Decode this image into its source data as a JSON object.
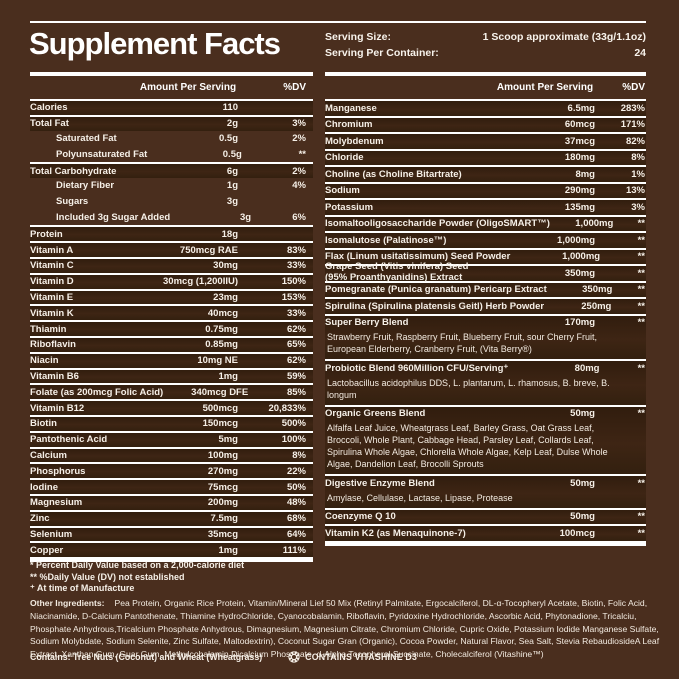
{
  "title": "Supplement Facts",
  "serving": {
    "size_label": "Serving Size:",
    "size_value": "1 Scoop approximate (33g/1.1oz)",
    "container_label": "Serving Per Container:",
    "container_value": "24"
  },
  "table_headers": {
    "amount": "Amount Per Serving",
    "dv": "%DV"
  },
  "left_rows": [
    {
      "name": "Calories",
      "amount": "110",
      "dv": ""
    },
    {
      "name": "Total Fat",
      "amount": "2g",
      "dv": "3%"
    },
    {
      "name": "Saturated Fat",
      "amount": "0.5g",
      "dv": "2%",
      "indent": true
    },
    {
      "name": "Polyunsaturated Fat",
      "amount": "0.5g",
      "dv": "**",
      "indent": true
    },
    {
      "name": "Total Carbohydrate",
      "amount": "6g",
      "dv": "2%"
    },
    {
      "name": "Dietary Fiber",
      "amount": "1g",
      "dv": "4%",
      "indent": true
    },
    {
      "name": "Sugars",
      "amount": "3g",
      "dv": "",
      "indent": true
    },
    {
      "name": "Included 3g Sugar Added",
      "amount": "3g",
      "dv": "6%",
      "indent": true
    },
    {
      "name": "Protein",
      "amount": "18g",
      "dv": ""
    },
    {
      "name": "Vitamin A",
      "amount": "750mcg RAE",
      "dv": "83%"
    },
    {
      "name": "Vitamin C",
      "amount": "30mg",
      "dv": "33%"
    },
    {
      "name": "Vitamin D",
      "amount": "30mcg (1,200IIU)",
      "dv": "150%"
    },
    {
      "name": "Vitamin E",
      "amount": "23mg",
      "dv": "153%"
    },
    {
      "name": "Vitamin K",
      "amount": "40mcg",
      "dv": "33%"
    },
    {
      "name": "Thiamin",
      "amount": "0.75mg",
      "dv": "62%"
    },
    {
      "name": "Riboflavin",
      "amount": "0.85mg",
      "dv": "65%"
    },
    {
      "name": "Niacin",
      "amount": "10mg NE",
      "dv": "62%"
    },
    {
      "name": "Vitamin B6",
      "amount": "1mg",
      "dv": "59%"
    },
    {
      "name": "Folate (as 200mcg Folic Acid)",
      "amount": "340mcg DFE",
      "dv": "85%"
    },
    {
      "name": "Vitamin B12",
      "amount": "500mcg",
      "dv": "20,833%"
    },
    {
      "name": "Biotin",
      "amount": "150mcg",
      "dv": "500%"
    },
    {
      "name": "Pantothenic Acid",
      "amount": "5mg",
      "dv": "100%"
    },
    {
      "name": "Calcium",
      "amount": "100mg",
      "dv": "8%"
    },
    {
      "name": "Phosphorus",
      "amount": "270mg",
      "dv": "22%"
    },
    {
      "name": "Iodine",
      "amount": "75mcg",
      "dv": "50%"
    },
    {
      "name": "Magnesium",
      "amount": "200mg",
      "dv": "48%"
    },
    {
      "name": "Zinc",
      "amount": "7.5mg",
      "dv": "68%"
    },
    {
      "name": "Selenium",
      "amount": "35mcg",
      "dv": "64%"
    },
    {
      "name": "Copper",
      "amount": "1mg",
      "dv": "111%"
    }
  ],
  "right_rows": [
    {
      "name": "Manganese",
      "amount": "6.5mg",
      "dv": "283%"
    },
    {
      "name": "Chromium",
      "amount": "60mcg",
      "dv": "171%"
    },
    {
      "name": "Molybdenum",
      "amount": "37mcg",
      "dv": "82%"
    },
    {
      "name": "Chloride",
      "amount": "180mg",
      "dv": "8%"
    },
    {
      "name": "Choline (as Choline Bitartrate)",
      "amount": "8mg",
      "dv": "1%"
    },
    {
      "name": "Sodium",
      "amount": "290mg",
      "dv": "13%"
    },
    {
      "name": "Potassium",
      "amount": "135mg",
      "dv": "3%"
    },
    {
      "name": "Isomaltooligosaccharide Powder (OligoSMART™)",
      "amount": "1,000mg",
      "dv": "**"
    },
    {
      "name": "Isomalutose (Palatinose™)",
      "amount": "1,000mg",
      "dv": "**"
    },
    {
      "name": "Flax (Linum usitatissimum) Seed Powder",
      "amount": "1,000mg",
      "dv": "**"
    },
    {
      "name": "Grape Seed (Vitis vinifera) Seed",
      "name2": "(95% Proanthyanidins) Extract",
      "amount": "350mg",
      "dv": "**"
    },
    {
      "name": "Pomegranate (Punica granatum) Pericarp Extract",
      "amount": "350mg",
      "dv": "**"
    },
    {
      "name": "Spirulina (Spirulina platensis Geitl) Herb Powder",
      "amount": "250mg",
      "dv": "**"
    },
    {
      "name": "Super Berry Blend",
      "amount": "170mg",
      "dv": "**",
      "sub": "Strawberry Fruit, Raspberry Fruit, Blueberry Fruit, sour Cherry Fruit, European Elderberry, Cranberry Fruit, (Vita Berry®)"
    },
    {
      "name": "Probiotic Blend 960Million CFU/Serving⁺",
      "amount": "80mg",
      "dv": "**",
      "sub": "Lactobacillus acidophilus DDS, L. plantarum, L. rhamosus, B. breve, B. longum"
    },
    {
      "name": "Organic Greens Blend",
      "amount": "50mg",
      "dv": "**",
      "sub": "Alfalfa Leaf Juice, Wheatgrass Leaf, Barley Grass, Oat Grass Leaf, Broccoli, Whole Plant, Cabbage Head, Parsley Leaf, Collards Leaf, Spirulina Whole Algae, Chlorella Whole Algae, Kelp Leaf, Dulse Whole Algae, Dandelion Leaf, Brocolli Sprouts"
    },
    {
      "name": "Digestive Enzyme Blend",
      "amount": "50mg",
      "dv": "**",
      "sub": "Amylase, Cellulase, Lactase, Lipase, Protease"
    },
    {
      "name": "Coenzyme Q 10",
      "amount": "50mg",
      "dv": "**"
    },
    {
      "name": "Vitamin K2 (as Menaquinone-7)",
      "amount": "100mcg",
      "dv": "**"
    }
  ],
  "footnotes": [
    "* Percent Daily Value based on a 2,000-calorie diet",
    "** %Daily Value (DV) not established",
    "⁺ At time of Manufacture"
  ],
  "other_ingredients": {
    "label": "Other Ingredients:",
    "text": "Pea Protein, Organic Rice Protein, Vitamin/Mineral Lief 50 Mix (Retinyl Palmitate, Ergocalciferol, DL-α-Tocopheryl Acetate, Biotin, Folic Acid, Niacinamide, D-Calcium Pantothenate, Thiamine HydroChloride, Cyanocobalamin, Riboflavin, Pyridoxine Hydrochloride, Ascorbic Acid, Phytonadione, Tricalciu, Phosphate Anhydrous,Tricalcium Phosphate Anhydrous, Dimagnesium, Magnesium Citrate, Chromium Chloride, Cupric Oxide, Potassium Iodide Manganese Sulfate, Sodium Molybdate, Sodium Selenite, Zinc Sulfate, Maltodextrin), Coconut Sugar Gran (Organic), Cocoa Powder, Natural Flavor, Sea Salt, Stevia RebaudiosideA Leaf Extract, Xanthan Gum, Guar Gum, Methylcobalamin Dicalcium Phosphate, d-Alpha Tocopherol Succinate, Cholecalciferol (Vitashine™)"
  },
  "contains": "Contains: Tree Nuts (Coconut) and Wheat (Wheatgrass)",
  "badge": {
    "icon": "vitashine-sun-icon",
    "label": "CONTAINS VITASHINE D3"
  },
  "colors": {
    "background": "#4a2e1e",
    "row_band": "#3a2112",
    "separator_line": "#ffffff",
    "text": "#f6f0e8"
  }
}
